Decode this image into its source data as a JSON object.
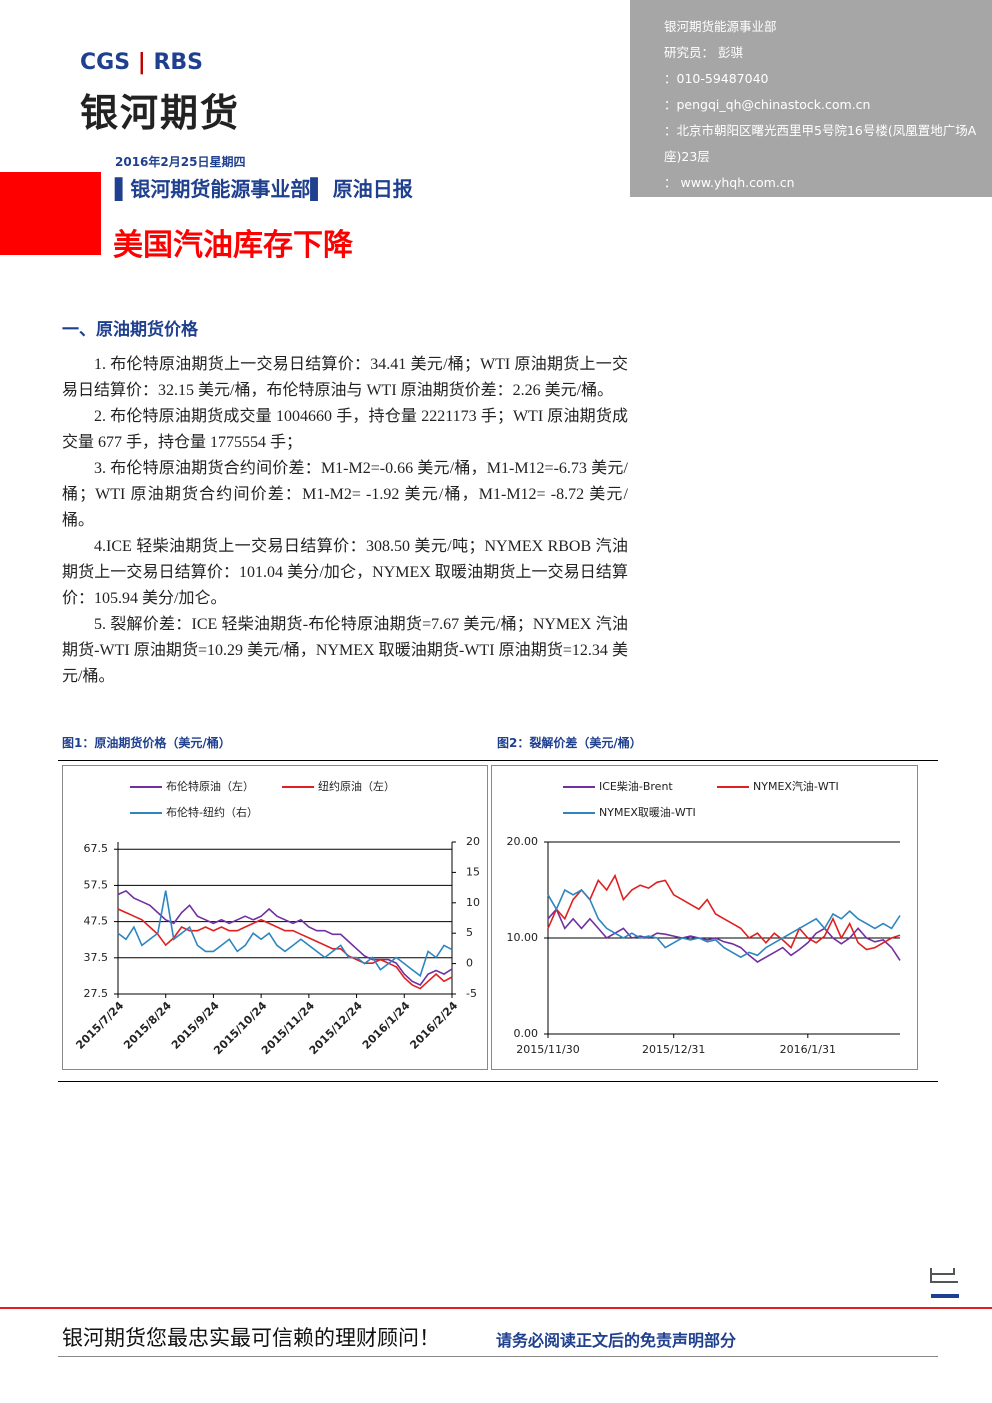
{
  "header": {
    "logo_en_1": "CGS",
    "logo_en_2": "RBS",
    "logo_cn": "银河期货",
    "contact": {
      "dept": "银河期货能源事业部",
      "researcher": "研究员： 彭骐",
      "phone": "：010-59487040",
      "email": "：pengqi_qh@chinastock.com.cn",
      "address": "：北京市朝阳区曙光西里甲5号院16号楼(凤凰置地广场A座)23层",
      "web": "：  www.yhqh.com.cn"
    }
  },
  "date": "2016年2月25日星期四",
  "report_title": "▌银河期货能源事业部▌ 原油日报",
  "headline": "美国汽油库存下降",
  "section": "一、原油期货价格",
  "paragraphs": [
    "1. 布伦特原油期货上一交易日结算价：34.41 美元/桶；WTI 原油期货上一交易日结算价：32.15 美元/桶，布伦特原油与 WTI 原油期货价差：2.26 美元/桶。",
    "2. 布伦特原油期货成交量 1004660 手，持仓量 2221173 手；WTI 原油期货成交量 677 手，持仓量 1775554 手；",
    "3. 布伦特原油期货合约间价差：M1-M2=-0.66 美元/桶，M1-M12=-6.73 美元/桶；WTI 原油期货合约间价差：M1-M2= -1.92 美元/桶，M1-M12= -8.72 美元/桶。",
    "4.ICE 轻柴油期货上一交易日结算价：308.50 美元/吨；NYMEX RBOB 汽油期货上一交易日结算价：101.04 美分/加仑，NYMEX 取暖油期货上一交易日结算价：105.94 美分/加仑。",
    "5. 裂解价差：ICE 轻柴油期货-布伦特原油期货=7.67 美元/桶；NYMEX 汽油期货-WTI 原油期货=10.29 美元/桶，NYMEX 取暖油期货-WTI 原油期货=12.34 美元/桶。"
  ],
  "chart_data": [
    {
      "type": "line",
      "title": "图1：原油期货价格（美元/桶）",
      "grid": true,
      "categories": [
        "2015/7/24",
        null,
        null,
        null,
        null,
        null,
        "2015/8/24",
        null,
        null,
        null,
        null,
        null,
        "2015/9/24",
        null,
        null,
        null,
        null,
        null,
        "2015/10/24",
        null,
        null,
        null,
        null,
        null,
        "2015/11/24",
        null,
        null,
        null,
        null,
        null,
        "2015/12/24",
        null,
        null,
        null,
        null,
        null,
        "2016/1/24",
        null,
        null,
        null,
        null,
        null,
        "2016/2/24"
      ],
      "ylim": [
        27.5,
        69.5
      ],
      "yticks": [
        27.5,
        37.5,
        47.5,
        57.5,
        67.5
      ],
      "y2lim": [
        -5,
        20
      ],
      "y2ticks": [
        -5,
        0,
        5,
        10,
        15,
        20
      ],
      "series": [
        {
          "name": "布伦特原油（左）",
          "color": "#7030a0",
          "values": [
            55,
            56,
            54,
            53,
            52,
            50,
            48,
            47,
            50,
            52,
            49,
            48,
            47,
            48,
            47,
            48,
            49,
            48,
            49,
            51,
            49,
            48,
            47,
            48,
            46,
            45,
            45,
            44,
            44,
            42,
            40,
            38,
            37,
            37,
            37,
            36,
            33,
            31,
            30,
            33,
            34,
            33,
            34.4
          ]
        },
        {
          "name": "纽约原油（左）",
          "color": "#e02020",
          "values": [
            51,
            50,
            49,
            48,
            46,
            44,
            41,
            43,
            46,
            45,
            45,
            46,
            45,
            46,
            45,
            45,
            46,
            47,
            48,
            47,
            46,
            45,
            45,
            44,
            43,
            42,
            41,
            40,
            40,
            38,
            37,
            36,
            36,
            37,
            36,
            35,
            32,
            30,
            29,
            31,
            33,
            31,
            32.2
          ]
        },
        {
          "name": "布伦特-纽约（右）",
          "color": "#2e86c1",
          "axis": "y2",
          "values": [
            5,
            4,
            6,
            3,
            4,
            5,
            12,
            4,
            5,
            6,
            3,
            2,
            2,
            3,
            4,
            2,
            3,
            5,
            4,
            5,
            3,
            2,
            3,
            4,
            3,
            2,
            1,
            2,
            3,
            1,
            1,
            0,
            1,
            -1,
            0,
            1,
            0,
            -1,
            -2,
            2,
            1,
            3,
            2.3
          ]
        }
      ]
    },
    {
      "type": "line",
      "title": "图2：裂解价差（美元/桶）",
      "grid": true,
      "categories": [
        "2015/11/30",
        null,
        null,
        null,
        null,
        null,
        null,
        null,
        null,
        null,
        null,
        null,
        null,
        null,
        null,
        "2015/12/31",
        null,
        null,
        null,
        null,
        null,
        null,
        null,
        null,
        null,
        null,
        null,
        null,
        null,
        null,
        null,
        "2016/1/31",
        null,
        null,
        null,
        null,
        null,
        null,
        null,
        null,
        null,
        null,
        null
      ],
      "ylim": [
        0,
        20
      ],
      "yticks": [
        {
          "value": 0,
          "label": "0.00"
        },
        {
          "value": 10,
          "label": "10.00"
        },
        {
          "value": 20,
          "label": "20.00"
        }
      ],
      "series": [
        {
          "name": "ICE柴油-Brent",
          "color": "#7030a0",
          "values": [
            12,
            13,
            11,
            12,
            11,
            12,
            11,
            10,
            10.5,
            11,
            10,
            10.2,
            10,
            10.5,
            10.4,
            10.2,
            10,
            10.2,
            10,
            9.8,
            10,
            9.6,
            9.4,
            9,
            8.2,
            7.5,
            8,
            8.5,
            9,
            8.2,
            8.8,
            9.5,
            10.5,
            11,
            10,
            9.4,
            10,
            11,
            10,
            9.6,
            9.8,
            9,
            7.67
          ]
        },
        {
          "name": "NYMEX汽油-WTI",
          "color": "#e02020",
          "values": [
            11,
            13,
            12,
            14,
            15,
            14,
            16,
            15,
            16.5,
            14,
            15,
            15.5,
            15.2,
            15.8,
            16,
            14.5,
            14,
            13.5,
            13,
            14,
            12.5,
            12,
            11.5,
            11,
            10,
            10.5,
            9.5,
            10.5,
            9.8,
            9,
            11,
            10,
            9.5,
            10.2,
            12,
            10,
            11.5,
            9.5,
            8.8,
            9,
            9.5,
            10,
            10.29
          ]
        },
        {
          "name": "NYMEX取暖油-WTI",
          "color": "#2e86c1",
          "values": [
            14.5,
            13,
            15,
            14.5,
            15,
            14,
            12,
            11,
            10.5,
            10,
            10.5,
            10,
            10.2,
            10,
            9,
            9.5,
            10,
            9.8,
            10,
            9.6,
            9.8,
            9,
            8.5,
            8,
            8.5,
            8.2,
            9,
            9.5,
            10,
            10.5,
            11,
            11.5,
            12,
            11,
            12.5,
            12,
            12.8,
            12,
            11.5,
            11,
            11.5,
            11,
            12.34
          ]
        }
      ]
    }
  ],
  "footer": {
    "slogan": "银河期货您最忠实最可信赖的理财顾问！",
    "disclaimer": "请务必阅读正文后的免责声明部分"
  }
}
